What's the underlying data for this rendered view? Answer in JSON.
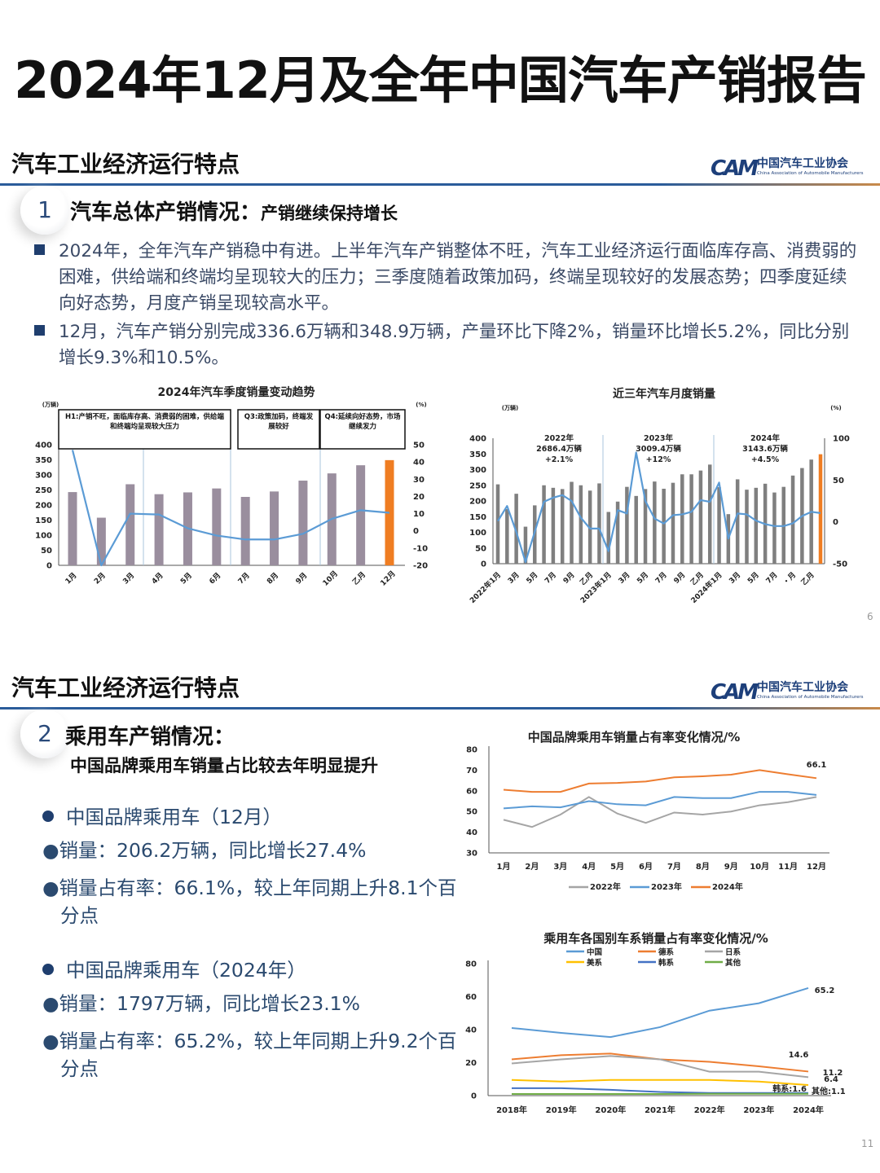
{
  "title": "2024年12月及全年中国汽车产销报告",
  "logo": {
    "cn": "中国汽车工业协会",
    "en": "China Association of Automobile Manufacturers",
    "mark": "CAM"
  },
  "slide1": {
    "section_title": "汽车工业经济运行特点",
    "item_number": "1",
    "item_heading": "汽车总体产销情况：",
    "item_subheading": "产销继续保持增长",
    "paragraphs": [
      "2024年，全年汽车产销稳中有进。上半年汽车产销整体不旺，汽车工业经济运行面临库存高、消费弱的困难，供给端和终端均呈现较大的压力；三季度随着政策加码，终端呈现较好的发展态势；四季度延续向好态势，月度产销呈现较高水平。",
      "12月，汽车产销分别完成336.6万辆和348.9万辆，产量环比下降2%，销量环比增长5.2%，同比分别增长9.3%和10.5%。"
    ],
    "page_number": "6"
  },
  "slide2": {
    "section_title": "汽车工业经济运行特点",
    "item_number": "2",
    "item_heading": "乘用车产销情况：",
    "item_subheading": "中国品牌乘用车销量占比较去年明显提升",
    "bullets": [
      {
        "head": "中国品牌乘用车（12月）",
        "lines": [
          "●销量：206.2万辆，同比增长27.4%",
          "●销量占有率：66.1%，较上年同期上升8.1个百",
          "分点"
        ]
      },
      {
        "head": "中国品牌乘用车（2024年）",
        "lines": [
          "●销量：1797万辆，同比增长23.1%",
          "●销量占有率：65.2%，较上年同期上升9.2个百",
          "分点"
        ]
      }
    ],
    "page_number": "11"
  },
  "colors": {
    "bar": "#9a8e9e",
    "bar_highlight": "#ef7d22",
    "line": "#5b9bd5",
    "bar_dark": "#7f7f7f",
    "y2022": "#a5a5a5",
    "y2023": "#5b9bd5",
    "y2024": "#ed7d31"
  },
  "chart_data": [
    {
      "type": "bar",
      "title": "2024年汽车季度销量变动趋势",
      "y_unit": "(万辆)",
      "y2_unit": "(%)",
      "categories": [
        "1月",
        "2月",
        "3月",
        "4月",
        "5月",
        "6月",
        "7月",
        "8月",
        "9月",
        "10月",
        "乙月",
        "12月"
      ],
      "series": [
        {
          "type": "bar",
          "axis": "left",
          "values": [
            243,
            158,
            269,
            236,
            242,
            255,
            227,
            245,
            281,
            305,
            332,
            349
          ]
        },
        {
          "type": "line",
          "axis": "right",
          "values": [
            47,
            -20,
            10,
            9.5,
            1.5,
            -2.7,
            -5,
            -5,
            -1.7,
            7,
            12,
            10.5
          ]
        }
      ],
      "highlight_last": true,
      "ylim": [
        0,
        400
      ],
      "yticks": [
        0,
        50,
        100,
        150,
        200,
        250,
        300,
        350,
        400
      ],
      "y2lim": [
        -20,
        50
      ],
      "y2ticks": [
        -20,
        -10,
        0,
        10,
        20,
        30,
        40,
        50
      ],
      "annotations": [
        {
          "text": "H1:产销不旺，面临库存高、消费弱的困难，供给端和终端均呈现较大压力",
          "months": [
            1,
            6
          ]
        },
        {
          "text": "Q3:政策加码，终端发展较好",
          "months": [
            7,
            9
          ]
        },
        {
          "text": "Q4:延续向好态势，市场继续发力",
          "months": [
            10,
            12
          ]
        }
      ],
      "grid": false
    },
    {
      "type": "bar",
      "title": "近三年汽车月度销量",
      "y_unit": "(万辆)",
      "y2_unit": "(%)",
      "tick_labels": [
        "2022年1月",
        "3月",
        "5月",
        "7月",
        "9月",
        "乙月",
        "2023年1月",
        "3月",
        "5月",
        "7月",
        "9月",
        "乙月",
        "2024年1月",
        "3月",
        "5月",
        "7月",
        "・月",
        "乙月"
      ],
      "series": [
        {
          "type": "bar",
          "axis": "left",
          "values": [
            253,
            174,
            223,
            118,
            186,
            250,
            242,
            238,
            261,
            250,
            233,
            256,
            165,
            198,
            245,
            216,
            238,
            262,
            239,
            258,
            285,
            285,
            297,
            316,
            244,
            158,
            269,
            236,
            242,
            255,
            227,
            245,
            281,
            305,
            332,
            349
          ]
        },
        {
          "type": "line",
          "axis": "right",
          "values": [
            1,
            19,
            -12,
            -48,
            -12,
            24,
            29,
            32,
            25,
            5,
            -8,
            -8,
            -35,
            14,
            10,
            83,
            25,
            4,
            -2,
            8,
            9,
            12,
            26,
            24,
            47,
            -20,
            10,
            9,
            1.5,
            -2.7,
            -5,
            -5,
            -1.7,
            7,
            12,
            10.5
          ]
        }
      ],
      "highlight_last": true,
      "ylim": [
        0,
        400
      ],
      "yticks": [
        0,
        50,
        100,
        150,
        200,
        250,
        300,
        350,
        400
      ],
      "y2lim": [
        -50,
        100
      ],
      "y2ticks": [
        -50,
        0,
        50,
        100
      ],
      "year_annotations": [
        {
          "year": "2022年",
          "total": "2686.4万辆",
          "growth": "+2.1%"
        },
        {
          "year": "2023年",
          "total": "3009.4万辆",
          "growth": "+12%"
        },
        {
          "year": "2024年",
          "total": "3143.6万辆",
          "growth": "+4.5%"
        }
      ],
      "grid": false
    },
    {
      "type": "line",
      "title": "中国品牌乘用车销量占有率变化情况/%",
      "categories": [
        "1月",
        "2月",
        "3月",
        "4月",
        "5月",
        "6月",
        "7月",
        "8月",
        "9月",
        "10月",
        "11月",
        "12月"
      ],
      "series": [
        {
          "name": "2022年",
          "values": [
            46,
            42.5,
            48.5,
            57,
            49,
            44.5,
            49.5,
            48.5,
            50,
            53,
            54.5,
            57
          ]
        },
        {
          "name": "2023年",
          "values": [
            51.5,
            52.5,
            52,
            55,
            53.5,
            53,
            57,
            56.5,
            56.5,
            59.5,
            59.5,
            58
          ]
        },
        {
          "name": "2024年",
          "values": [
            60.5,
            59.5,
            59.5,
            63.5,
            63.8,
            64.5,
            66.5,
            67,
            67.8,
            70,
            68,
            66.1
          ]
        }
      ],
      "data_labels": [
        {
          "series": "2024年",
          "index": 11,
          "text": "66.1"
        }
      ],
      "ylim": [
        30,
        80
      ],
      "yticks": [
        30,
        40,
        50,
        60,
        70,
        80
      ],
      "legend": "bottom",
      "grid": false
    },
    {
      "type": "line",
      "title": "乘用车各国别车系销量占有率变化情况/%",
      "categories": [
        "2018年",
        "2019年",
        "2020年",
        "2021年",
        "2022年",
        "2023年",
        "2024年"
      ],
      "series": [
        {
          "name": "中国",
          "color": "#5b9bd5",
          "values": [
            41,
            38,
            35.5,
            41.5,
            51.5,
            56,
            65.2
          ]
        },
        {
          "name": "德系",
          "color": "#ed7d31",
          "values": [
            22,
            24.5,
            25.5,
            22,
            20.5,
            17.8,
            14.6
          ]
        },
        {
          "name": "日系",
          "color": "#a5a5a5",
          "values": [
            19.5,
            22,
            24,
            22,
            14.5,
            14.5,
            11.2
          ]
        },
        {
          "name": "美系",
          "color": "#ffc000",
          "values": [
            9.5,
            8.5,
            9.5,
            9.5,
            9.5,
            8.5,
            6.4
          ]
        },
        {
          "name": "韩系",
          "color": "#4472c4",
          "values": [
            4.5,
            4.5,
            3.5,
            2.2,
            1.6,
            1.6,
            1.6
          ]
        },
        {
          "name": "其他",
          "color": "#70ad47",
          "values": [
            1,
            1,
            1,
            1,
            1.1,
            1.1,
            1.1
          ]
        }
      ],
      "data_labels": [
        "65.2",
        "14.6",
        "11.2",
        "6.4",
        "韩系:1.6",
        "其他:1.1"
      ],
      "ylim": [
        0,
        80
      ],
      "yticks": [
        0,
        20,
        40,
        60,
        80
      ],
      "legend": "top",
      "grid": false
    }
  ]
}
